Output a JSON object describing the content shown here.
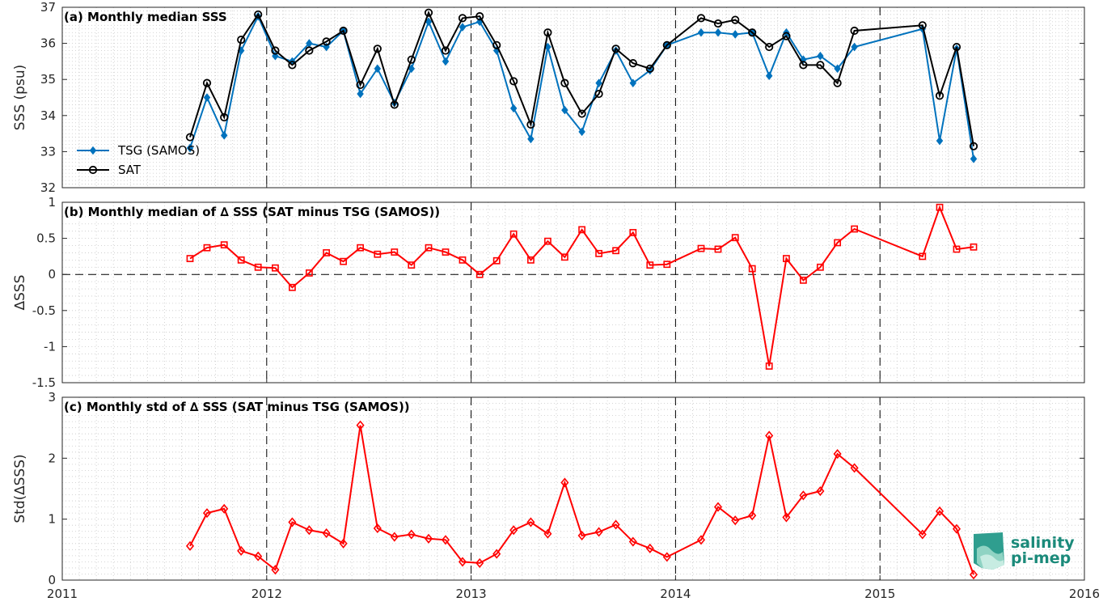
{
  "chart_data": [
    {
      "type": "line",
      "title": "(a) Monthly median SSS",
      "ylabel": "SSS (psu)",
      "ylim": [
        32,
        37
      ],
      "xlim": [
        2011,
        2016
      ],
      "yticks": [
        "32",
        "33",
        "34",
        "35",
        "36",
        "37"
      ],
      "grid": "minor dotted",
      "legend_position": "lower-left",
      "x": [
        2011.625,
        2011.708,
        2011.792,
        2011.875,
        2011.958,
        2012.042,
        2012.125,
        2012.208,
        2012.292,
        2012.375,
        2012.458,
        2012.542,
        2012.625,
        2012.708,
        2012.792,
        2012.875,
        2012.958,
        2013.042,
        2013.125,
        2013.208,
        2013.292,
        2013.375,
        2013.458,
        2013.542,
        2013.625,
        2013.708,
        2013.792,
        2013.875,
        2013.958,
        2014.125,
        2014.208,
        2014.292,
        2014.375,
        2014.458,
        2014.542,
        2014.625,
        2014.708,
        2014.792,
        2014.875,
        2015.208,
        2015.292,
        2015.375,
        2015.458
      ],
      "series": [
        {
          "name": "TSG (SAMOS)",
          "color": "#0072BD",
          "marker": "diamond-filled",
          "values": [
            33.1,
            34.5,
            33.45,
            35.8,
            36.75,
            35.65,
            35.5,
            36.0,
            35.9,
            36.35,
            34.6,
            35.3,
            34.35,
            35.3,
            36.6,
            35.5,
            36.45,
            36.6,
            35.8,
            34.2,
            33.35,
            35.9,
            34.15,
            33.55,
            34.9,
            35.8,
            34.9,
            35.25,
            35.95,
            36.3,
            36.3,
            36.25,
            36.3,
            35.1,
            36.3,
            35.55,
            35.65,
            35.3,
            35.9,
            36.4,
            33.3,
            35.85,
            32.8
          ]
        },
        {
          "name": "SAT",
          "color": "#000000",
          "marker": "circle-open",
          "values": [
            33.4,
            34.9,
            33.95,
            36.1,
            36.8,
            35.8,
            35.4,
            35.8,
            36.05,
            36.35,
            34.85,
            35.85,
            34.3,
            35.55,
            36.85,
            35.8,
            36.7,
            36.75,
            35.95,
            34.95,
            33.75,
            36.3,
            34.9,
            34.05,
            34.6,
            35.85,
            35.45,
            35.3,
            35.95,
            36.7,
            36.55,
            36.65,
            36.3,
            35.9,
            36.2,
            35.4,
            35.4,
            34.9,
            36.35,
            36.5,
            34.55,
            35.9,
            33.15
          ]
        }
      ]
    },
    {
      "type": "line",
      "title": "(b) Monthly median of ∆ SSS (SAT minus TSG (SAMOS))",
      "ylabel": "∆SSS",
      "ylim": [
        -1.5,
        1
      ],
      "xlim": [
        2011,
        2016
      ],
      "yticks": [
        "-1.5",
        "-1",
        "-0.5",
        "0",
        "0.5",
        "1"
      ],
      "grid": "minor dotted",
      "reference_line": 0,
      "x": [
        2011.625,
        2011.708,
        2011.792,
        2011.875,
        2011.958,
        2012.042,
        2012.125,
        2012.208,
        2012.292,
        2012.375,
        2012.458,
        2012.542,
        2012.625,
        2012.708,
        2012.792,
        2012.875,
        2012.958,
        2013.042,
        2013.125,
        2013.208,
        2013.292,
        2013.375,
        2013.458,
        2013.542,
        2013.625,
        2013.708,
        2013.792,
        2013.875,
        2013.958,
        2014.125,
        2014.208,
        2014.292,
        2014.375,
        2014.458,
        2014.542,
        2014.625,
        2014.708,
        2014.792,
        2014.875,
        2015.208,
        2015.292,
        2015.375,
        2015.458
      ],
      "series": [
        {
          "color": "#FF0000",
          "marker": "square-open",
          "values": [
            0.22,
            0.37,
            0.41,
            0.2,
            0.1,
            0.09,
            -0.18,
            0.02,
            0.3,
            0.18,
            0.37,
            0.28,
            0.31,
            0.13,
            0.37,
            0.31,
            0.2,
            0.0,
            0.19,
            0.56,
            0.2,
            0.46,
            0.24,
            0.62,
            0.29,
            0.33,
            0.58,
            0.13,
            0.14,
            0.36,
            0.35,
            0.51,
            0.08,
            -1.27,
            0.22,
            -0.08,
            0.1,
            0.44,
            0.63,
            0.25,
            0.93,
            0.35,
            0.38
          ]
        }
      ]
    },
    {
      "type": "line",
      "title": "(c) Monthly std of ∆ SSS (SAT minus TSG (SAMOS))",
      "ylabel": "Std(∆SSS)",
      "ylim": [
        0,
        3
      ],
      "xlim": [
        2011,
        2016
      ],
      "yticks": [
        "0",
        "1",
        "2",
        "3"
      ],
      "xticks": [
        "2011",
        "2012",
        "2013",
        "2014",
        "2015",
        "2016"
      ],
      "grid": "minor dotted",
      "x": [
        2011.625,
        2011.708,
        2011.792,
        2011.875,
        2011.958,
        2012.042,
        2012.125,
        2012.208,
        2012.292,
        2012.375,
        2012.458,
        2012.542,
        2012.625,
        2012.708,
        2012.792,
        2012.875,
        2012.958,
        2013.042,
        2013.125,
        2013.208,
        2013.292,
        2013.375,
        2013.458,
        2013.542,
        2013.625,
        2013.708,
        2013.792,
        2013.875,
        2013.958,
        2014.125,
        2014.208,
        2014.292,
        2014.375,
        2014.458,
        2014.542,
        2014.625,
        2014.708,
        2014.792,
        2014.875,
        2015.208,
        2015.292,
        2015.375,
        2015.458
      ],
      "series": [
        {
          "color": "#FF0000",
          "marker": "diamond-open",
          "values": [
            0.56,
            1.1,
            1.17,
            0.48,
            0.39,
            0.17,
            0.95,
            0.82,
            0.77,
            0.6,
            2.54,
            0.85,
            0.71,
            0.75,
            0.68,
            0.66,
            0.3,
            0.28,
            0.43,
            0.82,
            0.95,
            0.76,
            1.6,
            0.73,
            0.79,
            0.91,
            0.63,
            0.52,
            0.38,
            0.66,
            1.2,
            0.98,
            1.06,
            2.37,
            1.03,
            1.39,
            1.46,
            2.07,
            1.84,
            0.75,
            1.13,
            0.84,
            0.09
          ]
        }
      ]
    }
  ],
  "logo": {
    "line1": "salinity",
    "line2": "pi-mep"
  }
}
